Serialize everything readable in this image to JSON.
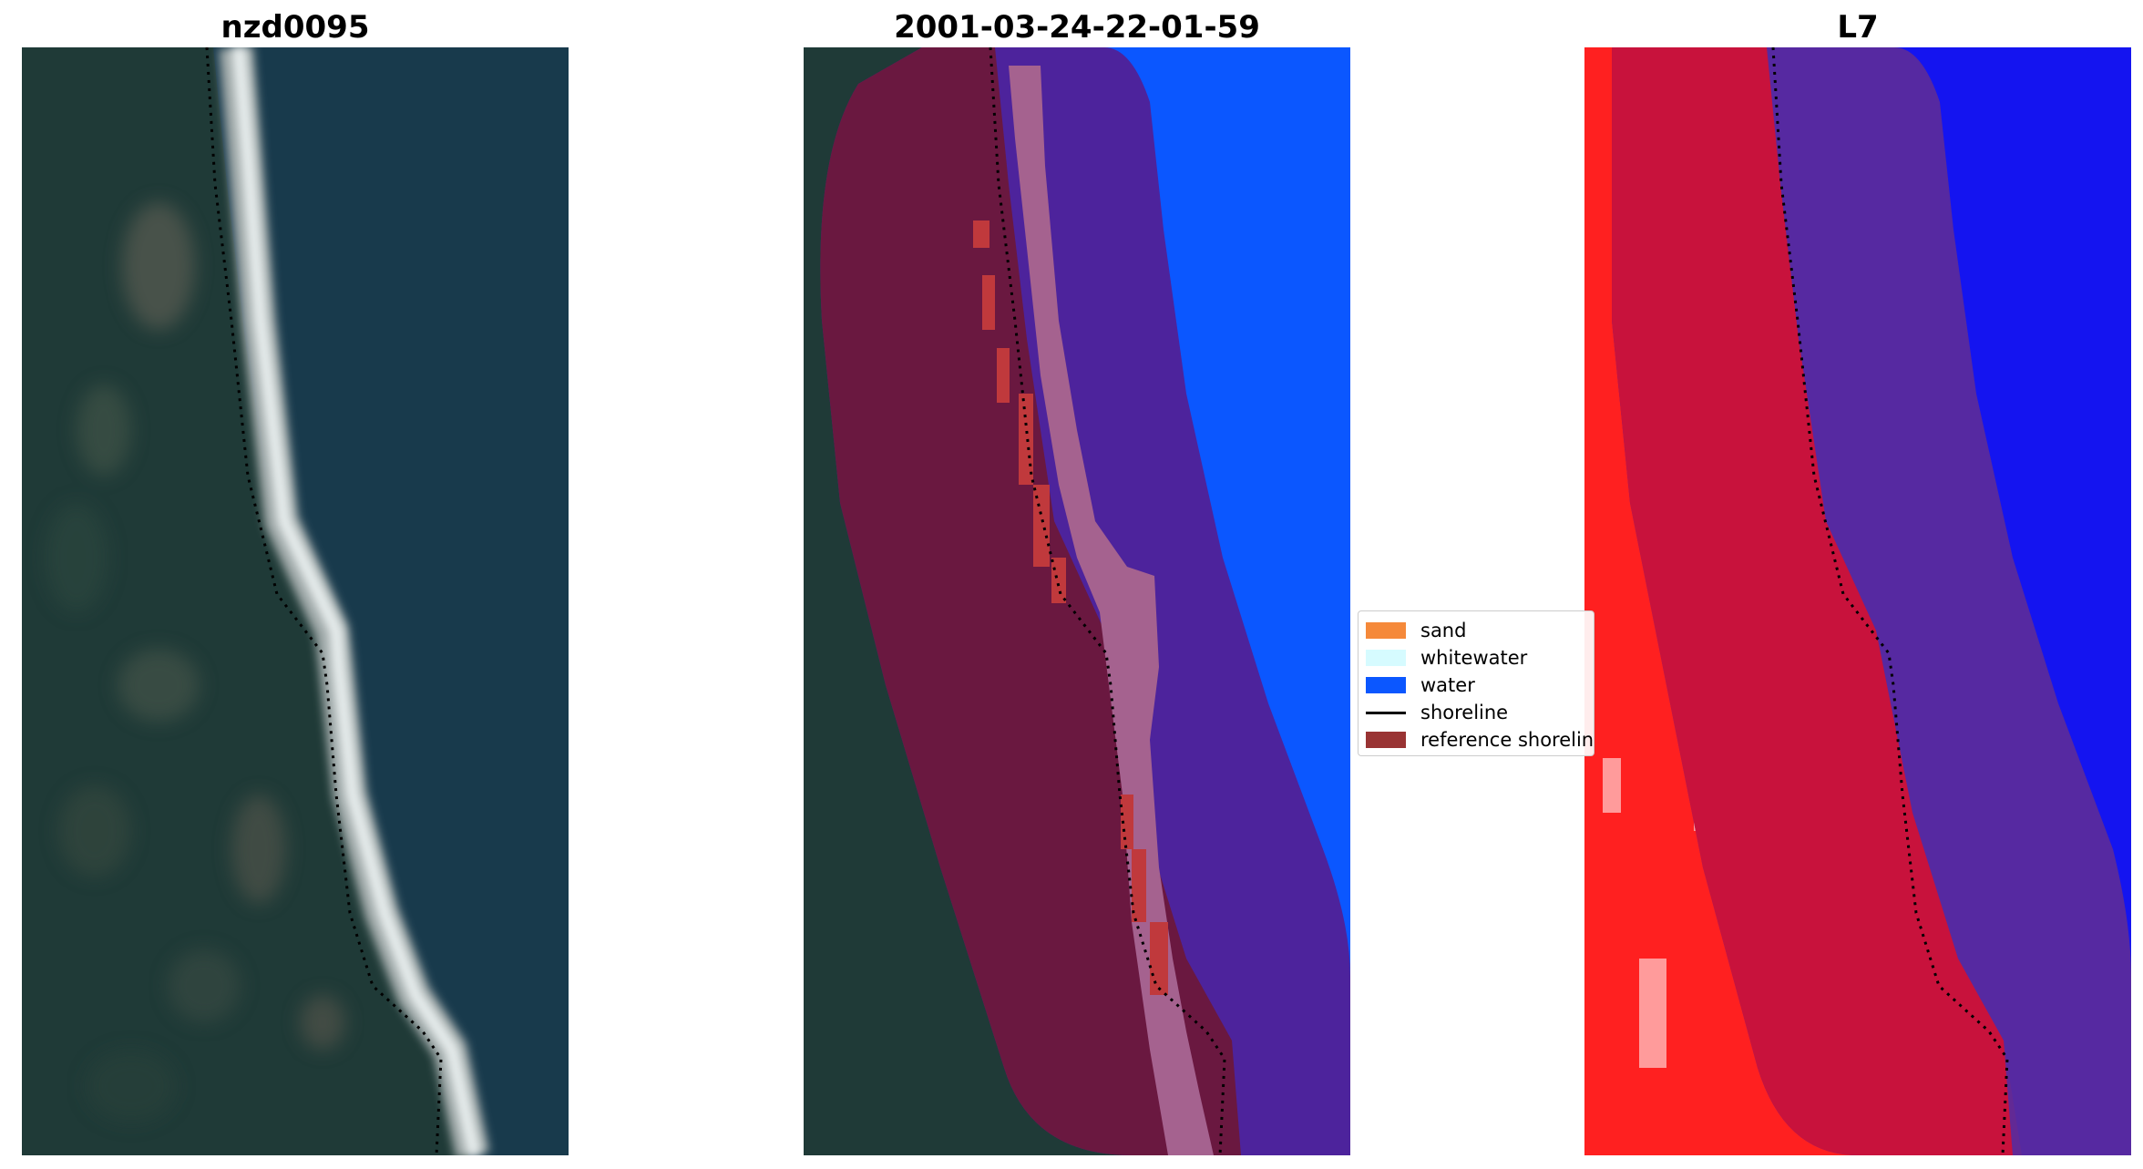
{
  "panels": [
    {
      "title": "nzd0095"
    },
    {
      "title": "2001-03-24-22-01-59"
    },
    {
      "title": "L7"
    }
  ],
  "legend": {
    "items": [
      {
        "label": "sand",
        "color": "#f5893a",
        "kind": "patch"
      },
      {
        "label": "whitewater",
        "color": "#d6fbff",
        "kind": "patch"
      },
      {
        "label": "water",
        "color": "#0b57ff",
        "kind": "patch"
      },
      {
        "label": "shoreline",
        "color": "#000000",
        "kind": "line"
      },
      {
        "label": "reference shoreline",
        "color": "#993333",
        "kind": "patch"
      }
    ]
  },
  "colors": {
    "land": "#1e3a36",
    "sea": "#183a4c",
    "buffer": "#6a1840",
    "buffer_water": "#4d239c",
    "classified_whitewater": "#a5628f",
    "classified_sand": "#c0393c",
    "water_mask": "#0b57ff",
    "ndwi_land": "#ff2020",
    "ndwi_water": "#1010f0"
  }
}
